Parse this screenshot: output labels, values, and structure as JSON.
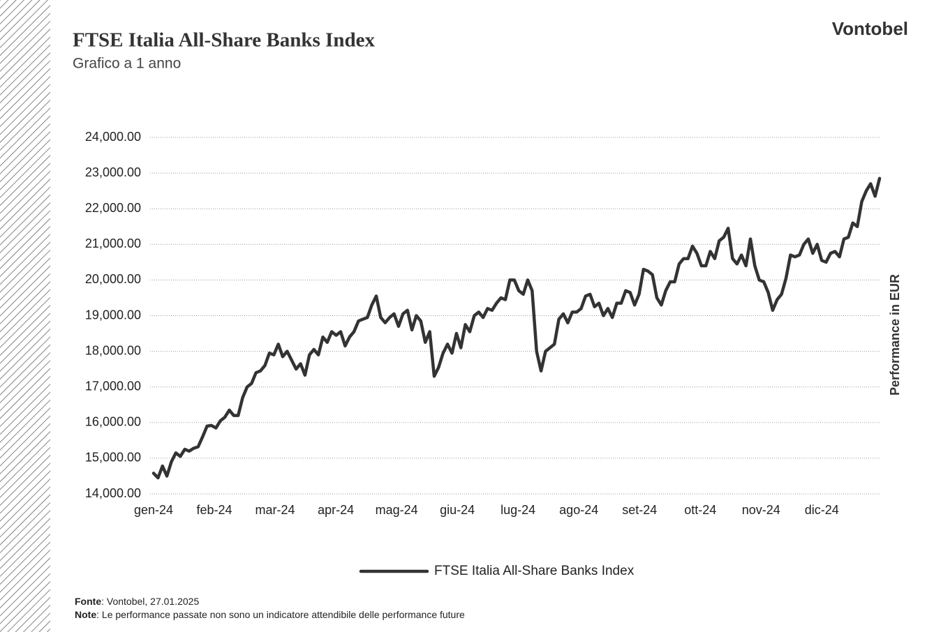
{
  "brand": "Vontobel",
  "chart_data": {
    "type": "line",
    "title": "FTSE Italia All-Share Banks Index",
    "subtitle": "Grafico a 1 anno",
    "y_axis_label": "Performance in EUR",
    "months": [
      "gen-24",
      "feb-24",
      "mar-24",
      "apr-24",
      "mag-24",
      "giu-24",
      "lug-24",
      "ago-24",
      "set-24",
      "ott-24",
      "nov-24",
      "dic-24"
    ],
    "ylim": [
      14000,
      24000
    ],
    "yticks": [
      {
        "value": 14000,
        "label": "14,000.00"
      },
      {
        "value": 15000,
        "label": "15,000.00"
      },
      {
        "value": 16000,
        "label": "16,000.00"
      },
      {
        "value": 17000,
        "label": "17,000.00"
      },
      {
        "value": 18000,
        "label": "18,000.00"
      },
      {
        "value": 19000,
        "label": "19,000.00"
      },
      {
        "value": 20000,
        "label": "20,000.00"
      },
      {
        "value": 21000,
        "label": "21,000.00"
      },
      {
        "value": 22000,
        "label": "22,000.00"
      },
      {
        "value": 23000,
        "label": "23,000.00"
      },
      {
        "value": 24000,
        "label": "24,000.00"
      }
    ],
    "grid": true,
    "series": [
      {
        "name": "FTSE Italia All-Share Banks Index",
        "color": "#333333",
        "values": [
          14580,
          14450,
          14780,
          14500,
          14900,
          15150,
          15050,
          15250,
          15200,
          15280,
          15320,
          15600,
          15900,
          15920,
          15850,
          16050,
          16150,
          16350,
          16200,
          16200,
          16700,
          17000,
          17100,
          17400,
          17450,
          17600,
          17950,
          17900,
          18200,
          17850,
          18000,
          17750,
          17500,
          17650,
          17330,
          17900,
          18050,
          17900,
          18400,
          18250,
          18550,
          18450,
          18550,
          18150,
          18400,
          18550,
          18850,
          18900,
          18950,
          19300,
          19550,
          18950,
          18800,
          18950,
          19050,
          18700,
          19050,
          19150,
          18600,
          19000,
          18850,
          18250,
          18550,
          17300,
          17550,
          17950,
          18200,
          17950,
          18500,
          18100,
          18750,
          18550,
          19000,
          19100,
          18950,
          19200,
          19150,
          19350,
          19500,
          19450,
          20000,
          20000,
          19700,
          19600,
          20000,
          19700,
          18000,
          17450,
          18000,
          18100,
          18200,
          18900,
          19050,
          18800,
          19100,
          19100,
          19200,
          19550,
          19600,
          19250,
          19350,
          19000,
          19200,
          18950,
          19350,
          19350,
          19700,
          19650,
          19300,
          19600,
          20300,
          20250,
          20150,
          19500,
          19300,
          19700,
          19950,
          19950,
          20450,
          20600,
          20600,
          20950,
          20750,
          20400,
          20400,
          20800,
          20600,
          21100,
          21200,
          21450,
          20600,
          20450,
          20700,
          20400,
          21150,
          20400,
          20000,
          19950,
          19650,
          19150,
          19450,
          19600,
          20050,
          20700,
          20650,
          20700,
          21000,
          21150,
          20750,
          21000,
          20550,
          20500,
          20750,
          20800,
          20650,
          21150,
          21200,
          21600,
          21500,
          22200,
          22500,
          22700,
          22350,
          22850
        ]
      }
    ]
  },
  "footnotes": [
    {
      "label": "Fonte",
      "text": ": Vontobel, 27.01.2025"
    },
    {
      "label": "Note",
      "text": ": Le performance passate non sono un indicatore attendibile delle performance future"
    }
  ]
}
